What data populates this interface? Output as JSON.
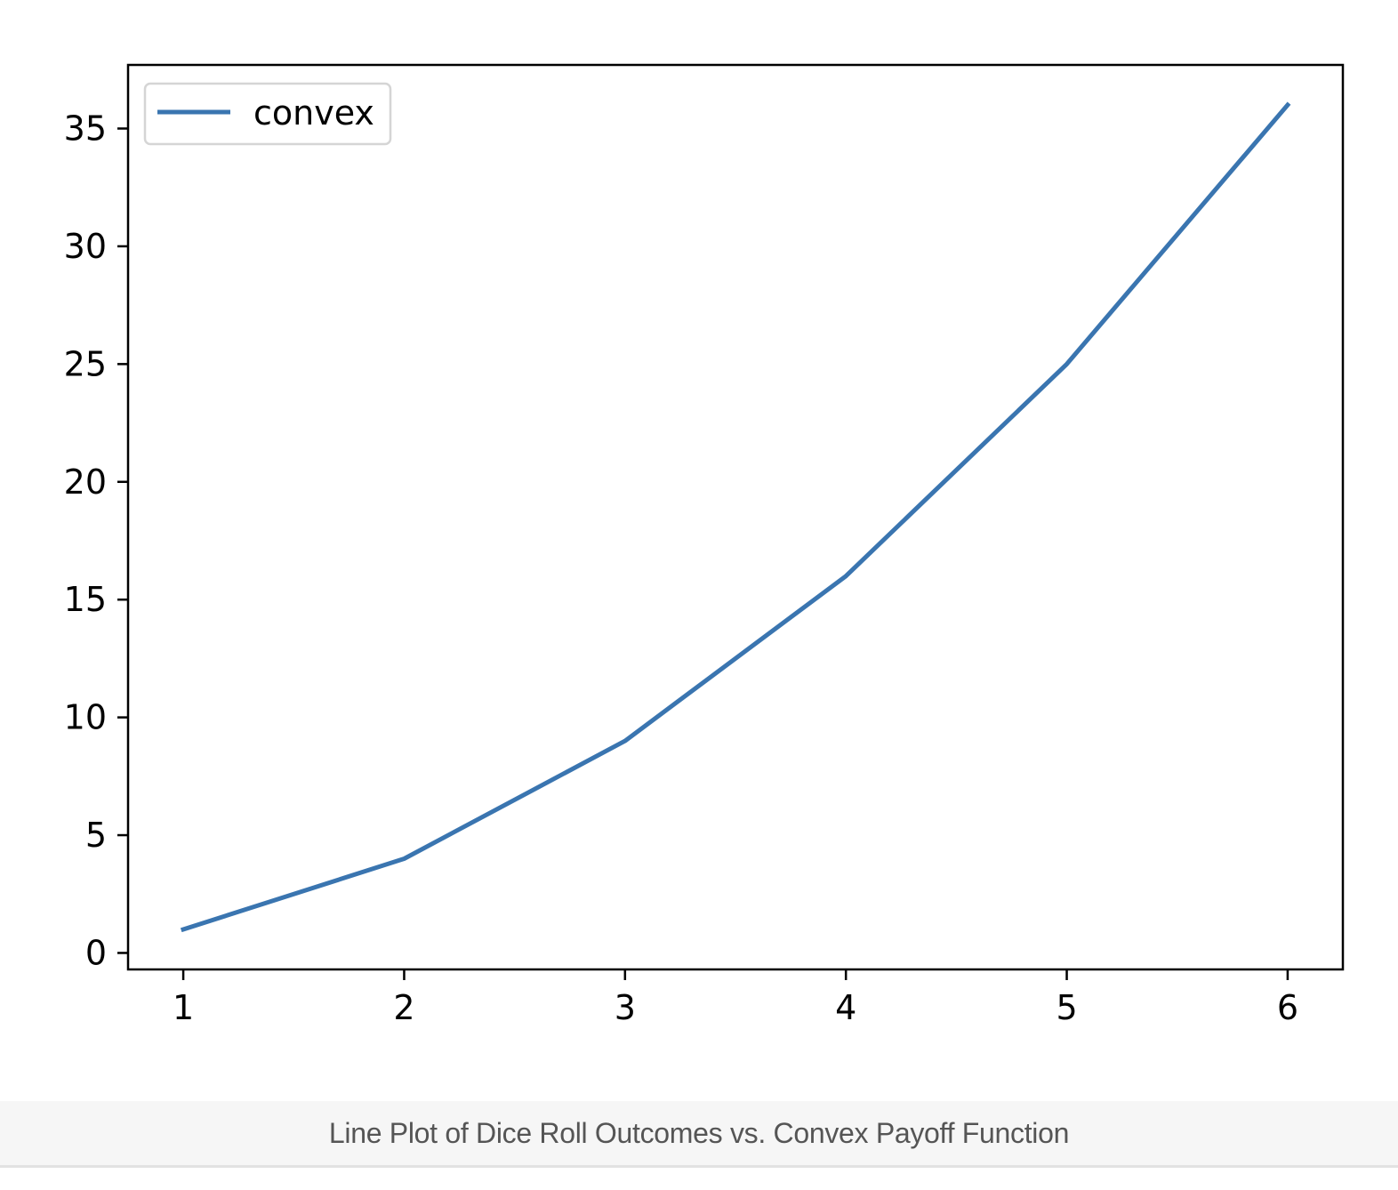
{
  "caption": "Line Plot of Dice Roll Outcomes vs. Convex Payoff Function",
  "chart_data": {
    "type": "line",
    "x": [
      1,
      2,
      3,
      4,
      5,
      6
    ],
    "series": [
      {
        "name": "convex",
        "values": [
          1,
          4,
          9,
          16,
          25,
          36
        ],
        "color": "#3a75b0"
      }
    ],
    "xticks": [
      1,
      2,
      3,
      4,
      5,
      6
    ],
    "yticks": [
      0,
      5,
      10,
      15,
      20,
      25,
      30,
      35
    ],
    "xlim": [
      0.75,
      6.25
    ],
    "ylim": [
      -0.7,
      37.7
    ],
    "title": "",
    "xlabel": "",
    "ylabel": "",
    "grid": false,
    "legend_position": "top-left"
  }
}
